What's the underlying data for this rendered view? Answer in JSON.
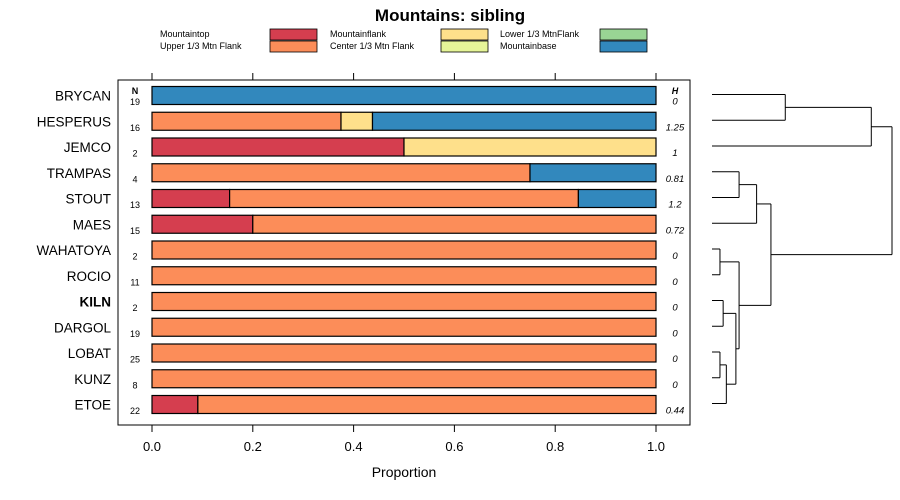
{
  "chart_data": {
    "type": "stacked-horizontal-bar",
    "title": "Mountains: sibling",
    "xlabel": "Proportion",
    "xlim": [
      0,
      1
    ],
    "xticks": [
      "0.0",
      "0.2",
      "0.4",
      "0.6",
      "0.8",
      "1.0"
    ],
    "n_header": "N",
    "h_header": "H",
    "legend": [
      {
        "label": "Mountaintop",
        "color": "#d53e4f"
      },
      {
        "label": "Upper 1/3 Mtn Flank",
        "color": "#fc8d59"
      },
      {
        "label": "Mountainflank",
        "color": "#fee08b"
      },
      {
        "label": "Center 1/3 Mtn Flank",
        "color": "#e6f598"
      },
      {
        "label": "Lower 1/3 MtnFlank",
        "color": "#99d594"
      },
      {
        "label": "Mountainbase",
        "color": "#3288bd"
      }
    ],
    "rows": [
      {
        "label": "BRYCAN",
        "bold": false,
        "n": "19",
        "h": "0",
        "segments": [
          {
            "cat": "Mountainbase",
            "value": 1.0
          }
        ]
      },
      {
        "label": "HESPERUS",
        "bold": false,
        "n": "16",
        "h": "1.25",
        "segments": [
          {
            "cat": "Upper 1/3 Mtn Flank",
            "value": 0.375
          },
          {
            "cat": "Mountainflank",
            "value": 0.0625
          },
          {
            "cat": "Mountainbase",
            "value": 0.5625
          }
        ]
      },
      {
        "label": "JEMCO",
        "bold": false,
        "n": "2",
        "h": "1",
        "segments": [
          {
            "cat": "Mountaintop",
            "value": 0.5
          },
          {
            "cat": "Mountainflank",
            "value": 0.5
          }
        ]
      },
      {
        "label": "TRAMPAS",
        "bold": false,
        "n": "4",
        "h": "0.81",
        "segments": [
          {
            "cat": "Upper 1/3 Mtn Flank",
            "value": 0.75
          },
          {
            "cat": "Mountainbase",
            "value": 0.25
          }
        ]
      },
      {
        "label": "STOUT",
        "bold": false,
        "n": "13",
        "h": "1.2",
        "segments": [
          {
            "cat": "Mountaintop",
            "value": 0.154
          },
          {
            "cat": "Upper 1/3 Mtn Flank",
            "value": 0.692
          },
          {
            "cat": "Mountainbase",
            "value": 0.154
          }
        ]
      },
      {
        "label": "MAES",
        "bold": false,
        "n": "15",
        "h": "0.72",
        "segments": [
          {
            "cat": "Mountaintop",
            "value": 0.2
          },
          {
            "cat": "Upper 1/3 Mtn Flank",
            "value": 0.8
          }
        ]
      },
      {
        "label": "WAHATOYA",
        "bold": false,
        "n": "2",
        "h": "0",
        "segments": [
          {
            "cat": "Upper 1/3 Mtn Flank",
            "value": 1.0
          }
        ]
      },
      {
        "label": "ROCIO",
        "bold": false,
        "n": "11",
        "h": "0",
        "segments": [
          {
            "cat": "Upper 1/3 Mtn Flank",
            "value": 1.0
          }
        ]
      },
      {
        "label": "KILN",
        "bold": true,
        "n": "2",
        "h": "0",
        "segments": [
          {
            "cat": "Upper 1/3 Mtn Flank",
            "value": 1.0
          }
        ]
      },
      {
        "label": "DARGOL",
        "bold": false,
        "n": "19",
        "h": "0",
        "segments": [
          {
            "cat": "Upper 1/3 Mtn Flank",
            "value": 1.0
          }
        ]
      },
      {
        "label": "LOBAT",
        "bold": false,
        "n": "25",
        "h": "0",
        "segments": [
          {
            "cat": "Upper 1/3 Mtn Flank",
            "value": 1.0
          }
        ]
      },
      {
        "label": "KUNZ",
        "bold": false,
        "n": "8",
        "h": "0",
        "segments": [
          {
            "cat": "Upper 1/3 Mtn Flank",
            "value": 1.0
          }
        ]
      },
      {
        "label": "ETOE",
        "bold": false,
        "n": "22",
        "h": "0.44",
        "segments": [
          {
            "cat": "Mountaintop",
            "value": 0.091
          },
          {
            "cat": "Upper 1/3 Mtn Flank",
            "value": 0.909
          }
        ]
      }
    ],
    "dendrogram": {
      "method": "hierarchical clustering of rows (leaf order top to bottom)",
      "merges": [
        {
          "id": "m1",
          "left": "leaf:6",
          "right": "leaf:7",
          "height": 0.05
        },
        {
          "id": "m2",
          "left": "leaf:10",
          "right": "leaf:11",
          "height": 0.05
        },
        {
          "id": "m3",
          "left": "leaf:8",
          "right": "leaf:9",
          "height": 0.07
        },
        {
          "id": "m4",
          "left": "node:m2",
          "right": "leaf:12",
          "height": 0.09
        },
        {
          "id": "m5",
          "left": "node:m3",
          "right": "node:m4",
          "height": 0.15
        },
        {
          "id": "m6",
          "left": "node:m1",
          "right": "node:m5",
          "height": 0.17
        },
        {
          "id": "m7",
          "left": "leaf:3",
          "right": "leaf:4",
          "height": 0.17
        },
        {
          "id": "m8",
          "left": "node:m7",
          "right": "leaf:5",
          "height": 0.28
        },
        {
          "id": "m9",
          "left": "node:m8",
          "right": "node:m6",
          "height": 0.37
        },
        {
          "id": "m10",
          "left": "leaf:0",
          "right": "leaf:1",
          "height": 0.46
        },
        {
          "id": "m11",
          "left": "node:m10",
          "right": "leaf:2",
          "height": 1.0
        },
        {
          "id": "m12",
          "left": "node:m11",
          "right": "node:m9",
          "height": 1.13
        }
      ]
    }
  }
}
